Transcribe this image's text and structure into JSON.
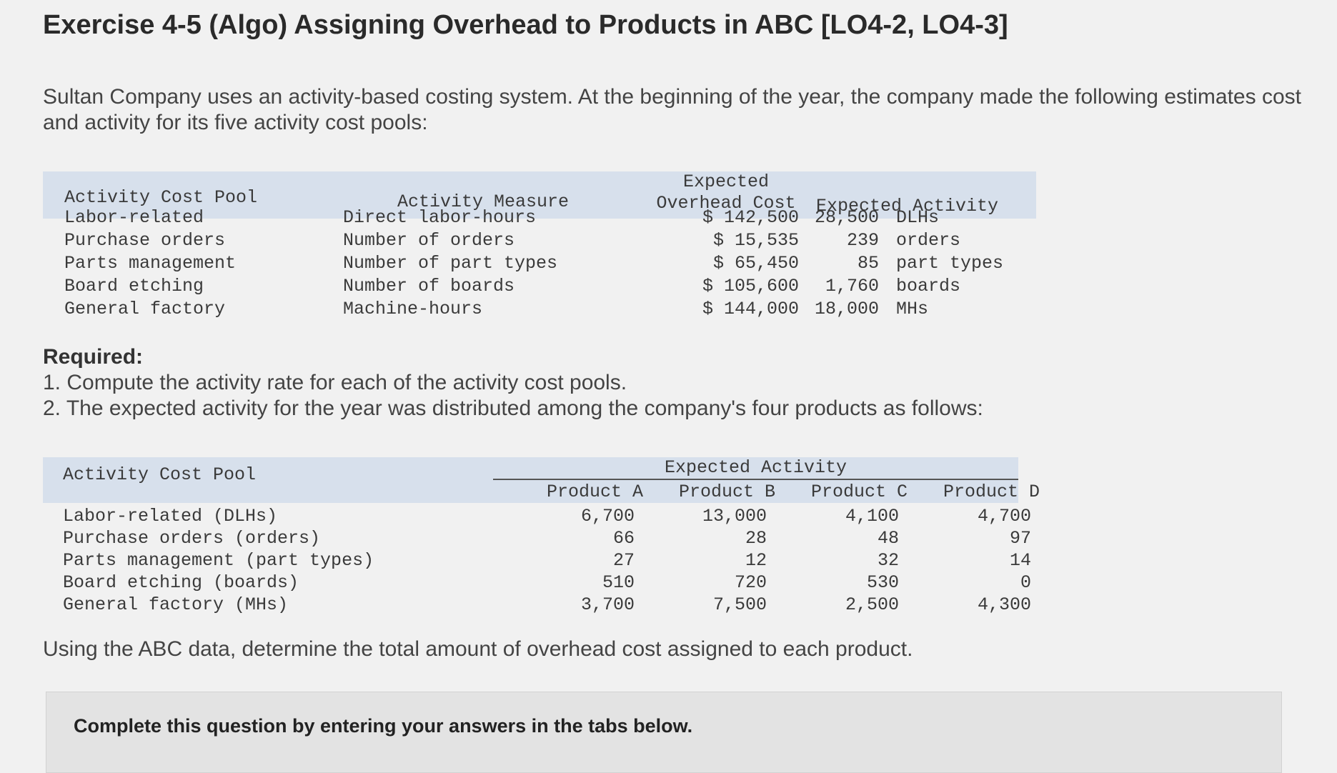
{
  "title": "Exercise 4-5 (Algo) Assigning Overhead to Products in ABC [LO4-2, LO4-3]",
  "intro": "Sultan Company uses an activity-based costing system. At the beginning of the year, the company made the following estimates cost and activity for its five activity cost pools:",
  "table1": {
    "headers": {
      "pool": "Activity Cost Pool",
      "measure": "Activity Measure",
      "cost_line1": "Expected",
      "cost_line2": "Overhead Cost",
      "activity": "Expected Activity"
    },
    "rows": [
      {
        "pool": "Labor-related",
        "measure": "Direct labor-hours",
        "cost": "$ 142,500",
        "qty": "28,500",
        "unit": "DLHs"
      },
      {
        "pool": "Purchase orders",
        "measure": "Number of orders",
        "cost": "$ 15,535",
        "qty": "239",
        "unit": "orders"
      },
      {
        "pool": "Parts management",
        "measure": "Number of part types",
        "cost": "$ 65,450",
        "qty": "85",
        "unit": "part types"
      },
      {
        "pool": "Board etching",
        "measure": "Number of boards",
        "cost": "$ 105,600",
        "qty": "1,760",
        "unit": "boards"
      },
      {
        "pool": "General factory",
        "measure": "Machine-hours",
        "cost": "$ 144,000",
        "qty": "18,000",
        "unit": "MHs"
      }
    ]
  },
  "required": {
    "heading": "Required:",
    "item1": "1. Compute the activity rate for each of the activity cost pools.",
    "item2": "2. The expected activity for the year was distributed among the company's four products as follows:"
  },
  "table2": {
    "headers": {
      "pool": "Activity Cost Pool",
      "group": "Expected Activity",
      "products": [
        "Product A",
        "Product B",
        "Product C",
        "Product D"
      ]
    },
    "rows": [
      {
        "pool": "Labor-related (DLHs)",
        "values": [
          "6,700",
          "13,000",
          "4,100",
          "4,700"
        ]
      },
      {
        "pool": "Purchase orders (orders)",
        "values": [
          "66",
          "28",
          "48",
          "97"
        ]
      },
      {
        "pool": "Parts management (part types)",
        "values": [
          "27",
          "12",
          "32",
          "14"
        ]
      },
      {
        "pool": "Board etching (boards)",
        "values": [
          "510",
          "720",
          "530",
          "0"
        ]
      },
      {
        "pool": "General factory (MHs)",
        "values": [
          "3,700",
          "7,500",
          "2,500",
          "4,300"
        ]
      }
    ]
  },
  "using_text": "Using the ABC data, determine the total amount of overhead cost assigned to each product.",
  "panel_note": "Complete this question by entering your answers in the tabs below."
}
